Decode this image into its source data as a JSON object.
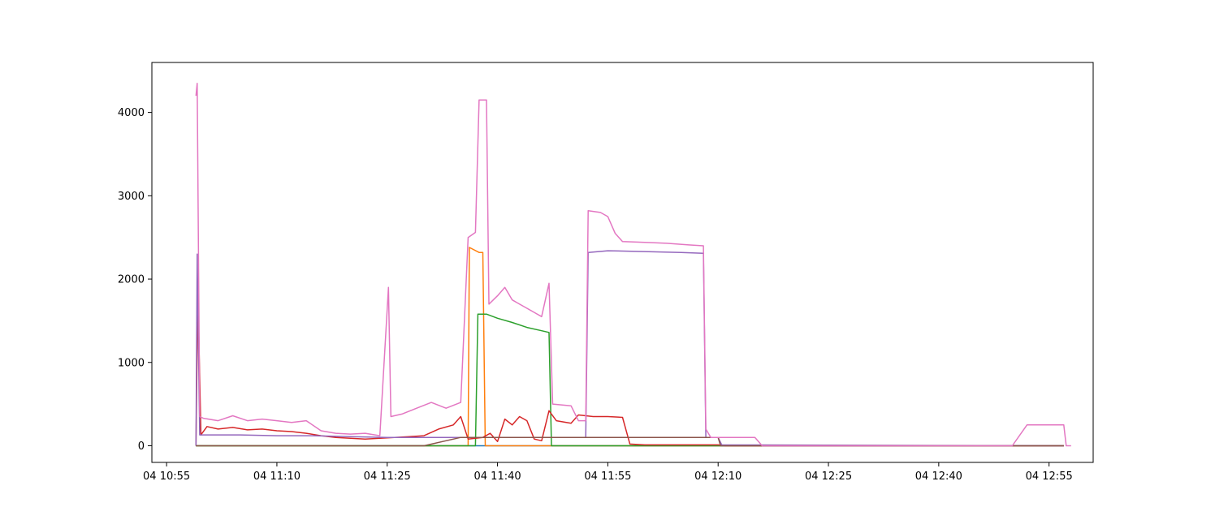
{
  "chart_data": {
    "type": "line",
    "title": "",
    "xlabel": "",
    "ylabel": "",
    "x_axis": {
      "type": "time",
      "min": "2024-01-04T10:53:00",
      "max": "2024-01-04T13:01:00",
      "ticks": [
        {
          "t": "2024-01-04T10:55:00",
          "label": "04 10:55"
        },
        {
          "t": "2024-01-04T11:10:00",
          "label": "04 11:10"
        },
        {
          "t": "2024-01-04T11:25:00",
          "label": "04 11:25"
        },
        {
          "t": "2024-01-04T11:40:00",
          "label": "04 11:40"
        },
        {
          "t": "2024-01-04T11:55:00",
          "label": "04 11:55"
        },
        {
          "t": "2024-01-04T12:10:00",
          "label": "04 12:10"
        },
        {
          "t": "2024-01-04T12:25:00",
          "label": "04 12:25"
        },
        {
          "t": "2024-01-04T12:40:00",
          "label": "04 12:40"
        },
        {
          "t": "2024-01-04T12:55:00",
          "label": "04 12:55"
        }
      ]
    },
    "y_axis": {
      "min": -200,
      "max": 4600,
      "ticks": [
        {
          "v": 0,
          "label": "0"
        },
        {
          "v": 1000,
          "label": "1000"
        },
        {
          "v": 2000,
          "label": "2000"
        },
        {
          "v": 3000,
          "label": "3000"
        },
        {
          "v": 4000,
          "label": "4000"
        }
      ]
    },
    "grid": false,
    "legend": "none",
    "series": [
      {
        "color": "#1f77b4",
        "points": [
          [
            "10:59:00",
            0
          ],
          [
            "12:57:00",
            0
          ]
        ]
      },
      {
        "color": "#ff7f0e",
        "points": [
          [
            "10:59:00",
            0
          ],
          [
            "11:36:00",
            0
          ],
          [
            "11:36:10",
            2380
          ],
          [
            "11:37:30",
            2320
          ],
          [
            "11:38:00",
            2320
          ],
          [
            "11:38:20",
            0
          ],
          [
            "12:57:00",
            0
          ]
        ]
      },
      {
        "color": "#2ca02c",
        "points": [
          [
            "10:59:00",
            0
          ],
          [
            "11:37:00",
            0
          ],
          [
            "11:37:20",
            1580
          ],
          [
            "11:38:30",
            1580
          ],
          [
            "11:40:00",
            1530
          ],
          [
            "11:42:00",
            1480
          ],
          [
            "11:44:00",
            1420
          ],
          [
            "11:46:00",
            1380
          ],
          [
            "11:47:00",
            1360
          ],
          [
            "11:47:20",
            0
          ],
          [
            "12:57:00",
            0
          ]
        ]
      },
      {
        "color": "#d62728",
        "points": [
          [
            "10:59:00",
            0
          ],
          [
            "10:59:15",
            1860
          ],
          [
            "10:59:40",
            130
          ],
          [
            "11:00:30",
            230
          ],
          [
            "11:02:00",
            200
          ],
          [
            "11:04:00",
            220
          ],
          [
            "11:06:00",
            190
          ],
          [
            "11:08:00",
            200
          ],
          [
            "11:10:00",
            180
          ],
          [
            "11:12:00",
            170
          ],
          [
            "11:14:00",
            150
          ],
          [
            "11:16:00",
            120
          ],
          [
            "11:18:00",
            100
          ],
          [
            "11:20:00",
            90
          ],
          [
            "11:22:00",
            80
          ],
          [
            "11:24:00",
            90
          ],
          [
            "11:26:00",
            100
          ],
          [
            "11:28:00",
            110
          ],
          [
            "11:30:00",
            120
          ],
          [
            "11:32:00",
            200
          ],
          [
            "11:34:00",
            250
          ],
          [
            "11:35:00",
            350
          ],
          [
            "11:36:00",
            80
          ],
          [
            "11:38:00",
            100
          ],
          [
            "11:39:00",
            150
          ],
          [
            "11:40:00",
            50
          ],
          [
            "11:41:00",
            320
          ],
          [
            "11:42:00",
            250
          ],
          [
            "11:43:00",
            350
          ],
          [
            "11:44:00",
            300
          ],
          [
            "11:45:00",
            80
          ],
          [
            "11:46:00",
            60
          ],
          [
            "11:47:00",
            420
          ],
          [
            "11:48:00",
            300
          ],
          [
            "11:50:00",
            270
          ],
          [
            "11:51:00",
            370
          ],
          [
            "11:53:00",
            350
          ],
          [
            "11:55:00",
            350
          ],
          [
            "11:57:00",
            340
          ],
          [
            "11:58:00",
            20
          ],
          [
            "12:00:00",
            10
          ],
          [
            "12:02:00",
            10
          ],
          [
            "12:10:00",
            10
          ],
          [
            "12:11:00",
            0
          ],
          [
            "12:57:00",
            0
          ]
        ]
      },
      {
        "color": "#9467bd",
        "points": [
          [
            "10:59:00",
            0
          ],
          [
            "10:59:10",
            2300
          ],
          [
            "10:59:30",
            130
          ],
          [
            "11:05:00",
            130
          ],
          [
            "11:10:00",
            120
          ],
          [
            "11:15:00",
            120
          ],
          [
            "11:20:00",
            110
          ],
          [
            "11:25:00",
            100
          ],
          [
            "11:30:00",
            100
          ],
          [
            "11:35:00",
            100
          ],
          [
            "11:40:00",
            100
          ],
          [
            "11:45:00",
            100
          ],
          [
            "11:50:00",
            100
          ],
          [
            "11:52:00",
            100
          ],
          [
            "11:52:20",
            2320
          ],
          [
            "11:55:00",
            2340
          ],
          [
            "12:00:00",
            2330
          ],
          [
            "12:05:00",
            2320
          ],
          [
            "12:08:00",
            2310
          ],
          [
            "12:08:20",
            100
          ],
          [
            "12:10:00",
            100
          ],
          [
            "12:10:30",
            10
          ],
          [
            "12:57:00",
            0
          ]
        ]
      },
      {
        "color": "#8c564b",
        "points": [
          [
            "10:59:00",
            0
          ],
          [
            "11:30:00",
            0
          ],
          [
            "11:35:00",
            100
          ],
          [
            "11:40:00",
            100
          ],
          [
            "11:45:00",
            100
          ],
          [
            "11:50:00",
            100
          ],
          [
            "11:55:00",
            100
          ],
          [
            "12:00:00",
            100
          ],
          [
            "12:05:00",
            100
          ],
          [
            "12:10:00",
            100
          ],
          [
            "12:10:20",
            0
          ],
          [
            "12:57:00",
            0
          ]
        ]
      },
      {
        "color": "#e377c2",
        "points": [
          [
            "10:59:00",
            4200
          ],
          [
            "10:59:10",
            4350
          ],
          [
            "10:59:30",
            350
          ],
          [
            "11:00:00",
            330
          ],
          [
            "11:02:00",
            300
          ],
          [
            "11:04:00",
            360
          ],
          [
            "11:06:00",
            300
          ],
          [
            "11:08:00",
            320
          ],
          [
            "11:10:00",
            300
          ],
          [
            "11:12:00",
            280
          ],
          [
            "11:14:00",
            300
          ],
          [
            "11:16:00",
            180
          ],
          [
            "11:18:00",
            150
          ],
          [
            "11:20:00",
            140
          ],
          [
            "11:22:00",
            150
          ],
          [
            "11:24:00",
            120
          ],
          [
            "11:25:10",
            1900
          ],
          [
            "11:25:30",
            350
          ],
          [
            "11:27:00",
            380
          ],
          [
            "11:29:00",
            450
          ],
          [
            "11:31:00",
            520
          ],
          [
            "11:33:00",
            450
          ],
          [
            "11:35:00",
            520
          ],
          [
            "11:36:00",
            2500
          ],
          [
            "11:37:00",
            2560
          ],
          [
            "11:37:30",
            4150
          ],
          [
            "11:38:30",
            4150
          ],
          [
            "11:38:50",
            1700
          ],
          [
            "11:40:00",
            1800
          ],
          [
            "11:41:00",
            1900
          ],
          [
            "11:42:00",
            1750
          ],
          [
            "11:43:00",
            1700
          ],
          [
            "11:44:00",
            1650
          ],
          [
            "11:45:00",
            1600
          ],
          [
            "11:46:00",
            1550
          ],
          [
            "11:47:00",
            1950
          ],
          [
            "11:47:30",
            500
          ],
          [
            "11:50:00",
            480
          ],
          [
            "11:51:00",
            300
          ],
          [
            "11:52:00",
            300
          ],
          [
            "11:52:20",
            2820
          ],
          [
            "11:54:00",
            2800
          ],
          [
            "11:55:00",
            2750
          ],
          [
            "11:56:00",
            2550
          ],
          [
            "11:57:00",
            2450
          ],
          [
            "12:00:00",
            2440
          ],
          [
            "12:03:00",
            2430
          ],
          [
            "12:06:00",
            2410
          ],
          [
            "12:08:00",
            2400
          ],
          [
            "12:08:20",
            200
          ],
          [
            "12:09:00",
            100
          ],
          [
            "12:15:00",
            100
          ],
          [
            "12:16:00",
            0
          ],
          [
            "12:50:00",
            0
          ],
          [
            "12:52:00",
            250
          ],
          [
            "12:57:00",
            250
          ],
          [
            "12:57:20",
            0
          ],
          [
            "12:58:00",
            0
          ]
        ]
      }
    ]
  }
}
